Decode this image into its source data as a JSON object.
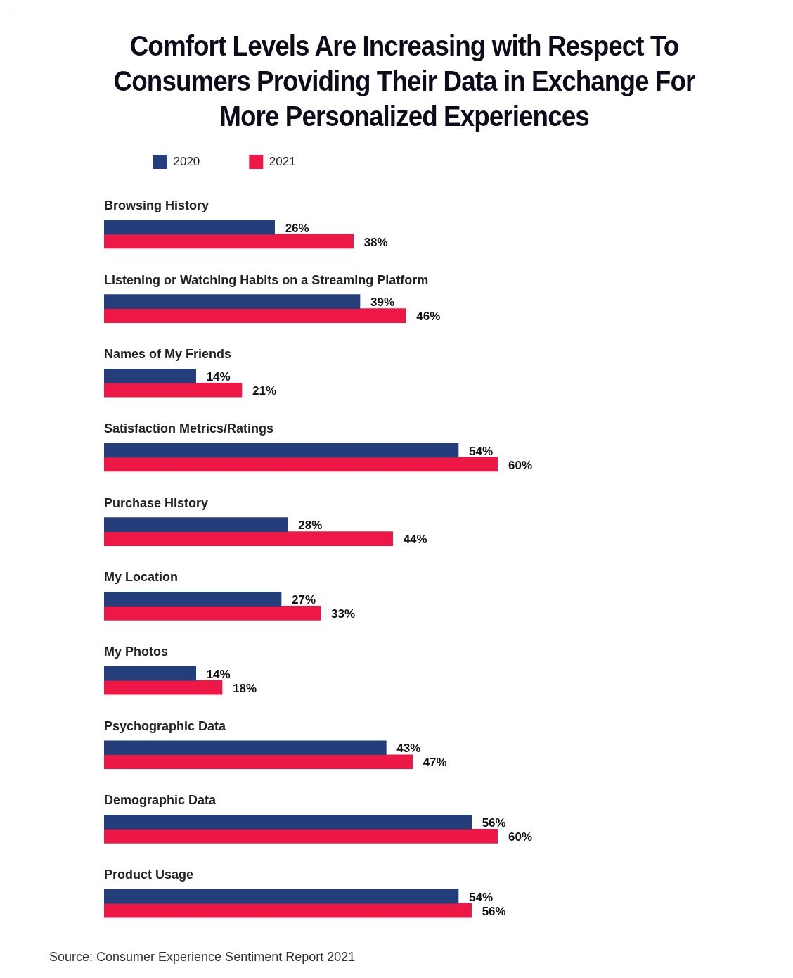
{
  "chart_data": {
    "type": "bar",
    "orientation": "horizontal",
    "title": "Comfort Levels Are Increasing with Respect To Consumers Providing Their Data in Exchange For More Personalized Experiences",
    "categories": [
      "Browsing History",
      "Listening or Watching Habits on a Streaming Platform",
      "Names of My Friends",
      "Satisfaction Metrics/Ratings",
      "Purchase History",
      "My Location",
      "My Photos",
      "Psychographic Data",
      "Demographic Data",
      "Product Usage"
    ],
    "series": [
      {
        "name": "2020",
        "color": "#233e7a",
        "values": [
          26,
          39,
          14,
          54,
          28,
          27,
          14,
          43,
          56,
          54
        ],
        "value_labels": [
          "26%",
          "39%",
          "14%",
          "54%",
          "28%",
          "27%",
          "14%",
          "43%",
          "56%",
          "54%"
        ]
      },
      {
        "name": "2021",
        "color": "#ee1846",
        "values": [
          38,
          46,
          21,
          60,
          44,
          33,
          18,
          47,
          60,
          56
        ],
        "value_labels": [
          "38%",
          "46%",
          "21%",
          "60%",
          "44%",
          "33%",
          "18%",
          "47%",
          "60%",
          "56%"
        ]
      }
    ],
    "legend": "top left",
    "annotations": [
      "Source: Consumer Experience Sentiment Report 2021"
    ]
  }
}
